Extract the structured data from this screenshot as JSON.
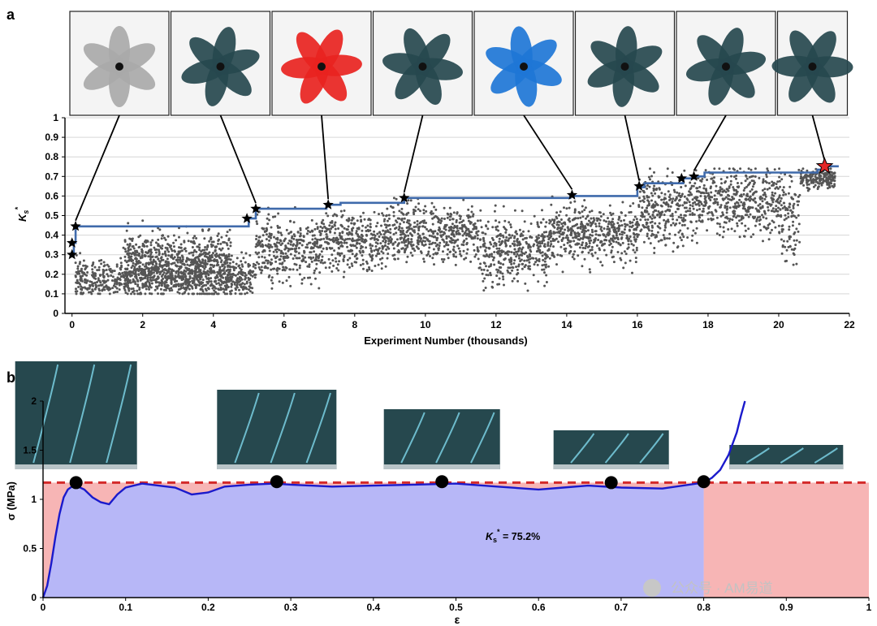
{
  "panel_a_label": "a",
  "panel_b_label": "b",
  "colors": {
    "step_line": "#3f6aab",
    "scatter": "#555555",
    "star": "#000000",
    "best_star": "#e32626",
    "curve": "#1a1acc",
    "dashed": "#d42a2a",
    "blue_fill": "#b7b7f7",
    "red_fill": "#f7b5b5",
    "photo_teal": "#26484e",
    "photo_red": "#e8231f",
    "photo_blue": "#1e76d6",
    "photo_gray": "#a9a9a9"
  },
  "watermark": "公众号 · AM易道",
  "chart_data": [
    {
      "type": "scatter",
      "panel": "a",
      "xlabel": "Experiment Number (thousands)",
      "ylabel": "K*s",
      "xlim": [
        -0.2,
        22
      ],
      "ylim": [
        0,
        1
      ],
      "x_ticks": [
        "0",
        "2",
        "4",
        "6",
        "8",
        "10",
        "12",
        "14",
        "16",
        "18",
        "20",
        "22"
      ],
      "y_ticks": [
        "0",
        "0.1",
        "0.2",
        "0.3",
        "0.4",
        "0.5",
        "0.6",
        "0.7",
        "0.8",
        "0.9",
        "1"
      ],
      "grid": true,
      "best_so_far_step": {
        "x": [
          0,
          0.05,
          0.05,
          0.1,
          0.1,
          5.0,
          5.0,
          5.2,
          5.2,
          7.2,
          7.2,
          7.6,
          7.6,
          9.4,
          9.4,
          14.1,
          14.1,
          16.0,
          16.0,
          16.2,
          16.2,
          17.3,
          17.3,
          17.6,
          17.6,
          17.9,
          17.9,
          21.1,
          21.1,
          21.35,
          21.35,
          21.7
        ],
        "y": [
          0.3,
          0.3,
          0.36,
          0.36,
          0.445,
          0.445,
          0.485,
          0.485,
          0.535,
          0.535,
          0.555,
          0.555,
          0.565,
          0.565,
          0.59,
          0.59,
          0.6,
          0.6,
          0.645,
          0.645,
          0.665,
          0.665,
          0.69,
          0.69,
          0.7,
          0.7,
          0.72,
          0.72,
          0.735,
          0.735,
          0.752,
          0.752
        ]
      },
      "stars": [
        {
          "x": 0.0,
          "y": 0.3
        },
        {
          "x": 0.0,
          "y": 0.36
        },
        {
          "x": 0.1,
          "y": 0.445
        },
        {
          "x": 4.95,
          "y": 0.485
        },
        {
          "x": 5.2,
          "y": 0.535
        },
        {
          "x": 7.25,
          "y": 0.555
        },
        {
          "x": 9.4,
          "y": 0.59
        },
        {
          "x": 14.15,
          "y": 0.605
        },
        {
          "x": 16.05,
          "y": 0.65
        },
        {
          "x": 17.25,
          "y": 0.69
        },
        {
          "x": 17.6,
          "y": 0.7
        }
      ],
      "best_star": {
        "x": 21.3,
        "y": 0.752
      },
      "scatter_segments": [
        {
          "x_start": 0.1,
          "x_end": 5.2,
          "mean": 0.18,
          "spread": 0.07
        },
        {
          "x_start": 1.5,
          "x_end": 4.5,
          "mean": 0.28,
          "spread": 0.1
        },
        {
          "x_start": 5.2,
          "x_end": 7.0,
          "mean": 0.33,
          "spread": 0.11
        },
        {
          "x_start": 7.0,
          "x_end": 8.8,
          "mean": 0.37,
          "spread": 0.11
        },
        {
          "x_start": 8.8,
          "x_end": 11.5,
          "mean": 0.41,
          "spread": 0.1
        },
        {
          "x_start": 11.5,
          "x_end": 13.5,
          "mean": 0.32,
          "spread": 0.12
        },
        {
          "x_start": 13.5,
          "x_end": 16.0,
          "mean": 0.41,
          "spread": 0.1
        },
        {
          "x_start": 16.0,
          "x_end": 17.6,
          "mean": 0.52,
          "spread": 0.13
        },
        {
          "x_start": 17.6,
          "x_end": 20.0,
          "mean": 0.58,
          "spread": 0.12
        },
        {
          "x_start": 20.0,
          "x_end": 20.6,
          "mean": 0.5,
          "spread": 0.18
        },
        {
          "x_start": 20.6,
          "x_end": 21.6,
          "mean": 0.69,
          "spread": 0.04
        }
      ],
      "thumbnails": [
        {
          "color": "gray",
          "x": 0.1,
          "y": 0.445
        },
        {
          "color": "teal",
          "x": 5.2,
          "y": 0.535
        },
        {
          "color": "red",
          "x": 7.25,
          "y": 0.555
        },
        {
          "color": "teal",
          "x": 9.4,
          "y": 0.59
        },
        {
          "color": "blue",
          "x": 14.15,
          "y": 0.605
        },
        {
          "color": "teal",
          "x": 16.05,
          "y": 0.65
        },
        {
          "color": "teal",
          "x": 17.6,
          "y": 0.7
        },
        {
          "color": "teal",
          "x": 21.3,
          "y": 0.752
        }
      ]
    },
    {
      "type": "line",
      "panel": "b",
      "xlabel": "ε",
      "ylabel": "σ (MPa)",
      "xlim": [
        0,
        1
      ],
      "ylim": [
        0,
        2
      ],
      "x_ticks": [
        "0",
        "0.1",
        "0.2",
        "0.3",
        "0.4",
        "0.5",
        "0.6",
        "0.7",
        "0.8",
        "0.9",
        "1"
      ],
      "y_ticks": [
        "0",
        "0.5",
        "1",
        "1.5",
        "2"
      ],
      "grid": false,
      "annotation": "K*s = 75.2%",
      "plateau_stress": 1.17,
      "densification_strain": 0.8,
      "curve": {
        "x": [
          0,
          0.005,
          0.01,
          0.015,
          0.02,
          0.025,
          0.03,
          0.035,
          0.04,
          0.05,
          0.06,
          0.07,
          0.08,
          0.09,
          0.1,
          0.12,
          0.14,
          0.16,
          0.18,
          0.2,
          0.22,
          0.25,
          0.28,
          0.3,
          0.35,
          0.4,
          0.45,
          0.5,
          0.55,
          0.6,
          0.63,
          0.66,
          0.7,
          0.75,
          0.8,
          0.81,
          0.82,
          0.83,
          0.84,
          0.845,
          0.85
        ],
        "y": [
          0,
          0.12,
          0.35,
          0.62,
          0.85,
          1.02,
          1.1,
          1.13,
          1.14,
          1.1,
          1.02,
          0.97,
          0.95,
          1.05,
          1.12,
          1.16,
          1.14,
          1.12,
          1.05,
          1.07,
          1.13,
          1.15,
          1.16,
          1.15,
          1.13,
          1.14,
          1.15,
          1.16,
          1.13,
          1.1,
          1.12,
          1.14,
          1.12,
          1.11,
          1.17,
          1.22,
          1.3,
          1.45,
          1.68,
          1.85,
          2.0
        ]
      },
      "markers": [
        {
          "x": 0.04,
          "y": 1.17
        },
        {
          "x": 0.283,
          "y": 1.18
        },
        {
          "x": 0.483,
          "y": 1.18
        },
        {
          "x": 0.688,
          "y": 1.17
        },
        {
          "x": 0.8,
          "y": 1.18
        }
      ],
      "photos_at_strain": [
        0.04,
        0.283,
        0.483,
        0.688,
        0.9
      ]
    }
  ]
}
